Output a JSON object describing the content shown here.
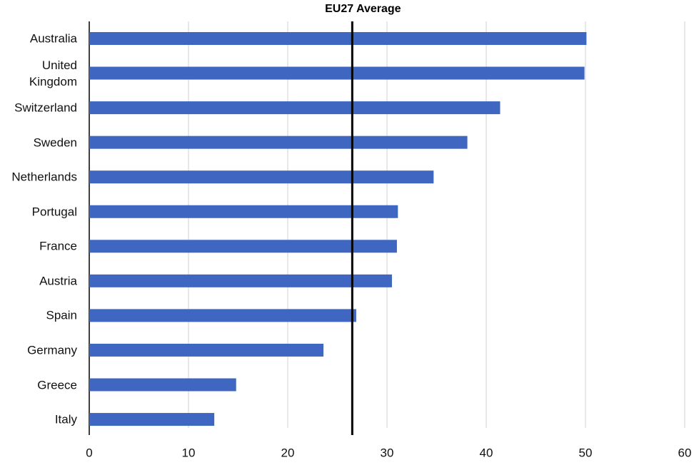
{
  "chart_data": {
    "type": "barh",
    "categories": [
      "Australia",
      "United Kingdom",
      "Switzerland",
      "Sweden",
      "Netherlands",
      "Portugal",
      "France",
      "Austria",
      "Spain",
      "Germany",
      "Greece",
      "Italy"
    ],
    "values": [
      50.1,
      49.9,
      41.4,
      38.1,
      34.7,
      31.1,
      31.0,
      30.5,
      26.9,
      23.6,
      14.8,
      12.6
    ],
    "color": "#3f66c0",
    "xlim": [
      0,
      60
    ],
    "xticks": [
      0,
      10,
      20,
      30,
      40,
      50,
      60
    ],
    "grid": true,
    "reference_line": {
      "label": "EU27 Average",
      "value": 26.5,
      "color": "#000000"
    }
  }
}
